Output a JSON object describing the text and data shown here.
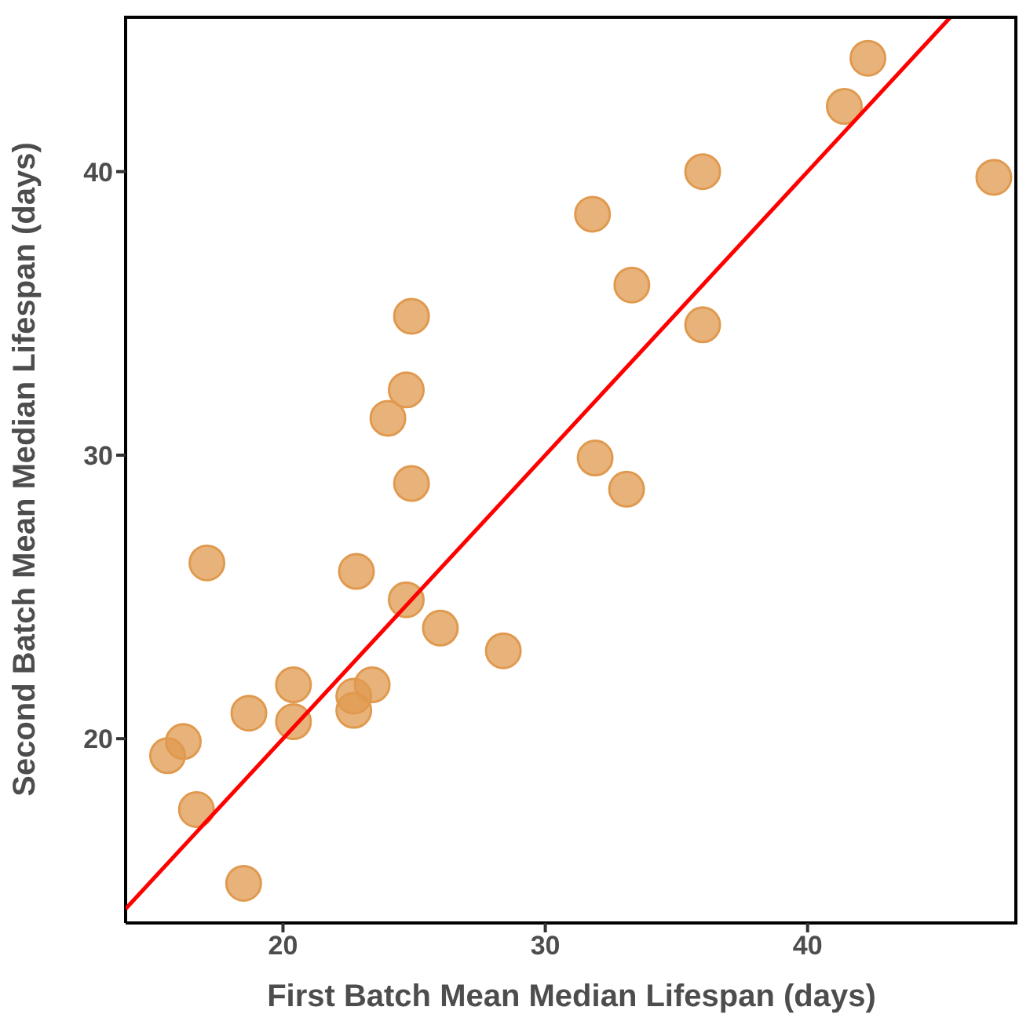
{
  "chart_data": {
    "type": "scatter",
    "xlabel": "First Batch Mean Median Lifespan (days)",
    "ylabel": "Second Batch Mean Median Lifespan (days)",
    "xlim": [
      14,
      48
    ],
    "ylim": [
      13.5,
      45.5
    ],
    "xticks": [
      20,
      30,
      40
    ],
    "yticks": [
      20,
      30,
      40
    ],
    "marker": "circle",
    "series": [
      {
        "color": "#e09a4f",
        "x": [
          15.6,
          16.2,
          16.7,
          17.1,
          18.5,
          18.7,
          20.4,
          20.4,
          22.7,
          22.7,
          23.4,
          22.8,
          24.7,
          26.0,
          28.4,
          24.0,
          24.7,
          24.9,
          24.9,
          31.9,
          33.1,
          31.8,
          33.3,
          36.0,
          36.0,
          41.4,
          42.3,
          47.1
        ],
        "values": [
          19.4,
          19.9,
          17.5,
          26.2,
          14.9,
          20.9,
          21.9,
          20.6,
          21.5,
          21.0,
          21.9,
          25.9,
          24.9,
          23.9,
          23.1,
          31.3,
          32.3,
          34.9,
          29.0,
          29.9,
          28.8,
          38.5,
          36.0,
          34.6,
          40.0,
          42.3,
          44.0,
          39.8
        ]
      },
      {
        "type": "line",
        "marker": "none",
        "color": "#ff0000",
        "x": [
          14,
          45.5
        ],
        "values": [
          14,
          45.5
        ]
      }
    ]
  }
}
